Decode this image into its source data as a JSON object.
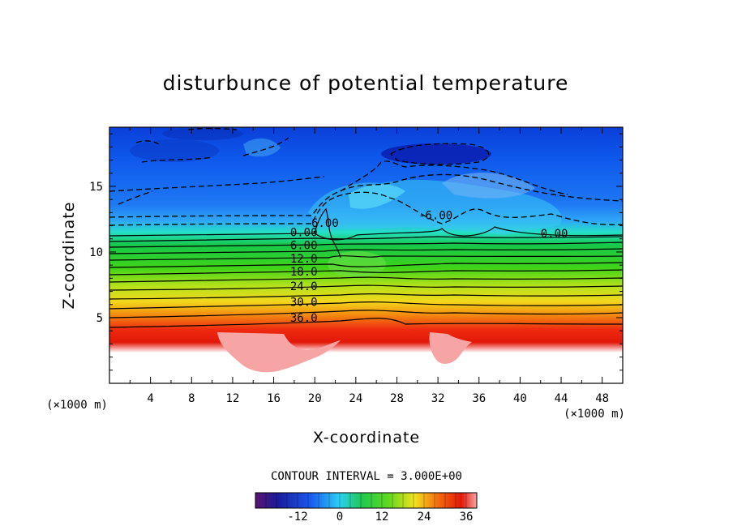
{
  "chart_data": {
    "type": "heatmap",
    "title": "disturbunce of potential temperature",
    "xlabel": "X-coordinate",
    "ylabel": "Z-coordinate",
    "x_unit": "(×1000 m)",
    "y_unit": "(×1000 m)",
    "xlim": [
      0,
      50
    ],
    "ylim": [
      0,
      19.5
    ],
    "x_ticks": [
      "4",
      "8",
      "12",
      "16",
      "20",
      "24",
      "28",
      "32",
      "36",
      "40",
      "44",
      "48"
    ],
    "y_ticks": [
      "5",
      "10",
      "15"
    ],
    "contour_interval_text": "CONTOUR INTERVAL = 3.000E+00",
    "contour_interval": 3.0,
    "contour_labels": [
      {
        "text": "-6.00",
        "x": 19.0,
        "y": 11.9
      },
      {
        "text": "0.00",
        "x": 17.6,
        "y": 11.2
      },
      {
        "text": "6.00",
        "x": 17.6,
        "y": 10.2
      },
      {
        "text": "12.0",
        "x": 17.6,
        "y": 9.2
      },
      {
        "text": "18.0",
        "x": 17.6,
        "y": 8.2
      },
      {
        "text": "24.0",
        "x": 17.6,
        "y": 7.1
      },
      {
        "text": "30.0",
        "x": 17.6,
        "y": 5.9
      },
      {
        "text": "36.0",
        "x": 17.6,
        "y": 4.7
      },
      {
        "text": "-6.00",
        "x": 30.1,
        "y": 12.5
      },
      {
        "text": "0.00",
        "x": 42.0,
        "y": 11.1
      }
    ],
    "colorbar": {
      "min": -24,
      "max": 39,
      "ticks": [
        "-12",
        "0",
        "12",
        "24",
        "36"
      ],
      "tick_values": [
        -12,
        0,
        12,
        24,
        36
      ]
    },
    "colors": {
      "cold": "#0050e0",
      "neutral": "#3ad0ff",
      "green": "#1fd01f",
      "yellow": "#f0e020",
      "red": "#ee1c10",
      "warm_blob": "#f7a4a4"
    }
  }
}
